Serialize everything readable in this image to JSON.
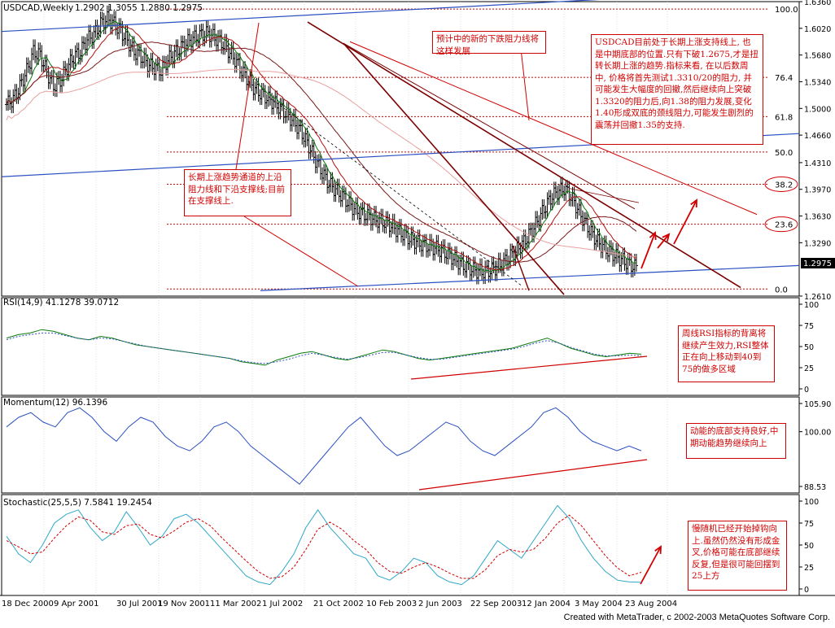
{
  "chart_data": [
    {
      "type": "candlestick",
      "title": "USDCAD,Weekly",
      "ohlc_text": "1.2902 1.3055 1.2880 1.2975",
      "current_value": "1.2975",
      "y_ticks": [
        "1.6360",
        "1.6020",
        "1.5680",
        "1.5340",
        "1.5000",
        "1.4660",
        "1.4310",
        "1.3970",
        "1.3630",
        "1.3290",
        "1.2610"
      ],
      "ylim": [
        1.261,
        1.636
      ],
      "fib_levels": [
        {
          "label": "100.0",
          "value": 1.6265
        },
        {
          "label": "76.4",
          "value": 1.5395
        },
        {
          "label": "61.8",
          "value": 1.4895
        },
        {
          "label": "50.0",
          "value": 1.4445
        },
        {
          "label": "38.2",
          "value": 1.4035
        },
        {
          "label": "23.6",
          "value": 1.3525
        },
        {
          "label": "0.0",
          "value": 1.27
        }
      ],
      "x_tick_labels": [
        "18 Dec 2000",
        "9 Apr 2001",
        "30 Jul 2001",
        "19 Nov 2001",
        "11 Mar 2002",
        "1 Jul 2002",
        "21 Oct 2002",
        "10 Feb 2003",
        "2 Jun 2003",
        "22 Sep 2003",
        "12 Jan 2004",
        "3 May 2004",
        "23 Aug 2004"
      ],
      "close_path": [
        1.505,
        1.512,
        1.528,
        1.548,
        1.572,
        1.568,
        1.546,
        1.528,
        1.536,
        1.552,
        1.566,
        1.572,
        1.588,
        1.594,
        1.608,
        1.614,
        1.608,
        1.598,
        1.586,
        1.572,
        1.566,
        1.556,
        1.552,
        1.548,
        1.562,
        1.57,
        1.578,
        1.585,
        1.59,
        1.594,
        1.596,
        1.59,
        1.584,
        1.574,
        1.562,
        1.548,
        1.536,
        1.524,
        1.518,
        1.512,
        1.506,
        1.498,
        1.49,
        1.48,
        1.468,
        1.452,
        1.434,
        1.418,
        1.404,
        1.396,
        1.388,
        1.378,
        1.37,
        1.366,
        1.362,
        1.358,
        1.356,
        1.352,
        1.346,
        1.34,
        1.334,
        1.33,
        1.326,
        1.324,
        1.322,
        1.318,
        1.312,
        1.306,
        1.3,
        1.296,
        1.293,
        1.292,
        1.294,
        1.298,
        1.304,
        1.312,
        1.32,
        1.33,
        1.342,
        1.356,
        1.372,
        1.386,
        1.394,
        1.398,
        1.388,
        1.372,
        1.356,
        1.342,
        1.33,
        1.322,
        1.316,
        1.31,
        1.305,
        1.3,
        1.297
      ],
      "annotations": [
        "long-term support",
        "resistance channel"
      ]
    },
    {
      "type": "line",
      "title": "RSI(14,9) 41.1278 39.0712",
      "y_ticks": [
        "100",
        "75",
        "50",
        "25",
        "0"
      ],
      "ylim": [
        0,
        100
      ],
      "series": [
        {
          "name": "RSI(14)",
          "values": [
            60,
            64,
            66,
            70,
            68,
            64,
            60,
            58,
            62,
            60,
            56,
            52,
            50,
            48,
            46,
            44,
            42,
            40,
            38,
            36,
            32,
            30,
            28,
            34,
            38,
            42,
            44,
            40,
            36,
            34,
            38,
            42,
            46,
            44,
            40,
            36,
            34,
            36,
            38,
            40,
            42,
            44,
            46,
            48,
            52,
            56,
            60,
            54,
            48,
            44,
            40,
            38,
            40,
            42,
            41
          ]
        },
        {
          "name": "Signal(9)",
          "values": [
            58,
            62,
            64,
            66,
            66,
            63,
            60,
            58,
            60,
            59,
            56,
            53,
            50,
            48,
            46,
            44,
            42,
            40,
            38,
            36,
            33,
            31,
            30,
            32,
            35,
            39,
            42,
            40,
            37,
            35,
            37,
            40,
            43,
            43,
            40,
            37,
            35,
            35,
            37,
            39,
            41,
            43,
            45,
            47,
            50,
            54,
            57,
            54,
            49,
            45,
            41,
            39,
            39,
            40,
            39
          ]
        }
      ]
    },
    {
      "type": "line",
      "title": "Momentum(12) 96.1396",
      "y_ticks": [
        "105.90",
        "100.00",
        "88.53"
      ],
      "ylim": [
        88.53,
        105.9
      ],
      "series": [
        {
          "name": "Momentum(12)",
          "values": [
            101,
            103,
            104,
            102,
            101,
            104,
            105,
            103,
            100,
            98,
            101,
            103,
            102,
            99,
            97,
            96,
            98,
            101,
            102,
            100,
            97,
            95,
            93,
            91,
            89,
            92,
            95,
            98,
            101,
            103,
            100,
            97,
            95,
            96,
            98,
            100,
            102,
            101,
            98,
            96,
            95,
            97,
            99,
            101,
            104,
            105,
            103,
            100,
            98,
            97,
            96,
            97,
            96
          ]
        }
      ]
    },
    {
      "type": "line",
      "title": "Stochastic(25,5,5) 7.5841 19.2454",
      "y_ticks": [
        "100",
        "75",
        "50",
        "25",
        "0"
      ],
      "ylim": [
        0,
        100
      ],
      "series": [
        {
          "name": "%K",
          "values": [
            60,
            40,
            30,
            50,
            75,
            85,
            90,
            70,
            55,
            65,
            88,
            70,
            50,
            60,
            80,
            85,
            75,
            60,
            45,
            30,
            15,
            8,
            5,
            20,
            40,
            70,
            90,
            70,
            55,
            40,
            35,
            15,
            10,
            20,
            35,
            30,
            15,
            8,
            5,
            15,
            35,
            55,
            45,
            35,
            55,
            75,
            95,
            80,
            55,
            35,
            20,
            10,
            8,
            7.6
          ]
        },
        {
          "name": "%D",
          "values": [
            55,
            48,
            40,
            42,
            58,
            72,
            82,
            78,
            65,
            62,
            72,
            74,
            62,
            58,
            66,
            76,
            80,
            72,
            58,
            45,
            32,
            20,
            12,
            14,
            25,
            45,
            68,
            76,
            68,
            55,
            45,
            30,
            20,
            18,
            25,
            30,
            25,
            18,
            12,
            12,
            22,
            38,
            45,
            42,
            45,
            58,
            75,
            84,
            72,
            55,
            38,
            24,
            15,
            19
          ]
        }
      ]
    }
  ],
  "notes": {
    "n1": "预计中的新的下跌阻力线将这样发展",
    "n2": "USDCAD目前处于长期上涨支持线上, 也是中期底部的位置.只有下破1.2675,才是扭转长期上涨的趋势.指标来看, 在以后数周中, 价格将首先测试1.3310/20的阻力, 并可能发生大幅度的回撤,然后继续向上突破1.3320的阻力后,向1.38的阻力发展,变化1.40形成双底的颈线阻力,可能发生剧烈的震荡并回撤1.35的支持.",
    "n3": "长期上涨趋势通道的上沿阻力线和下沿支撑线;目前在支撑线上.",
    "n4": "周线RSI指标的背离将继续产生效力,RSI整体正在向上移动到40到75的做多区域",
    "n5": "动能的底部支持良好,中期动能趋势继续向上",
    "n6": "慢随机已经开始掉钩向上.虽然仍然没有形成金叉,价格可能在底部继续反复,但是很可能回摆到25上方"
  },
  "footer": "Created with MetaTrader, c 2002-2003 MetaQuotes Software Corp.",
  "colors": {
    "candle": "#000000",
    "grid": "#c0c0c0",
    "annot": "#d00000",
    "trend_dark": "#7a0000",
    "blue": "#2a4fc0",
    "ma_green": "#0a7a0a",
    "ma_red": "#b01010"
  }
}
